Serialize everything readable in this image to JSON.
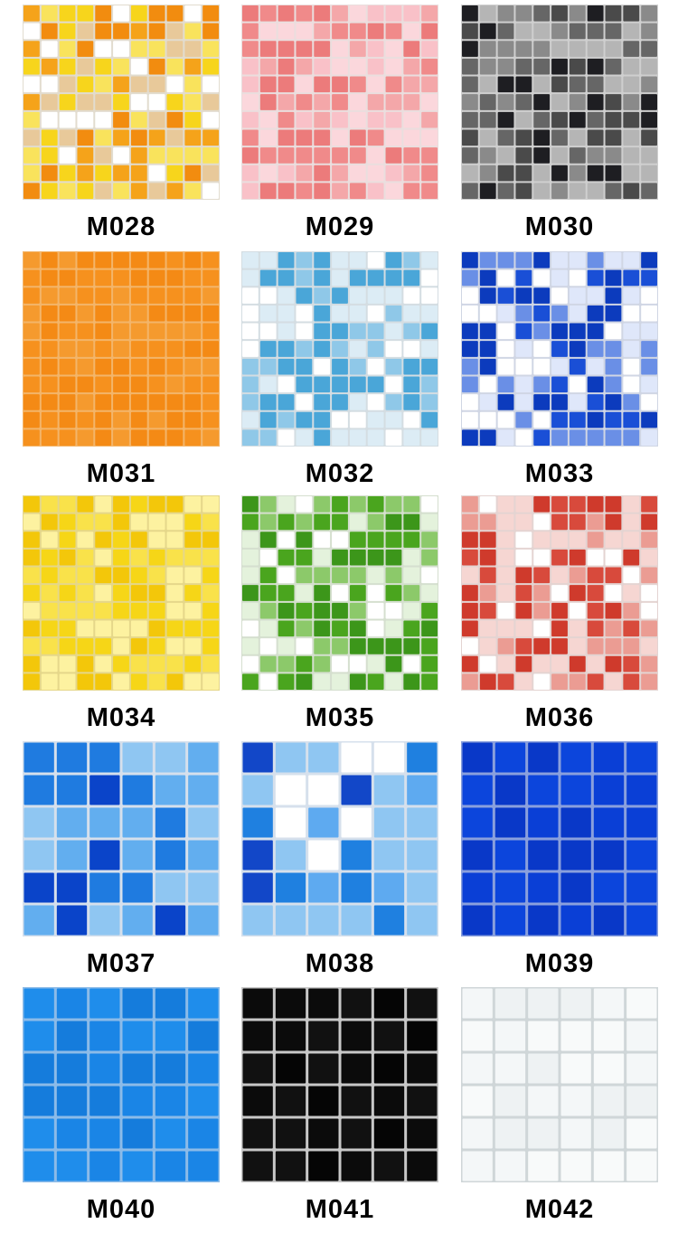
{
  "products": [
    {
      "code": "M028"
    },
    {
      "code": "M029"
    },
    {
      "code": "M030"
    },
    {
      "code": "M031"
    },
    {
      "code": "M032"
    },
    {
      "code": "M033"
    },
    {
      "code": "M034"
    },
    {
      "code": "M035"
    },
    {
      "code": "M036"
    },
    {
      "code": "M037"
    },
    {
      "code": "M038"
    },
    {
      "code": "M039"
    },
    {
      "code": "M040"
    },
    {
      "code": "M041"
    },
    {
      "code": "M042"
    }
  ]
}
